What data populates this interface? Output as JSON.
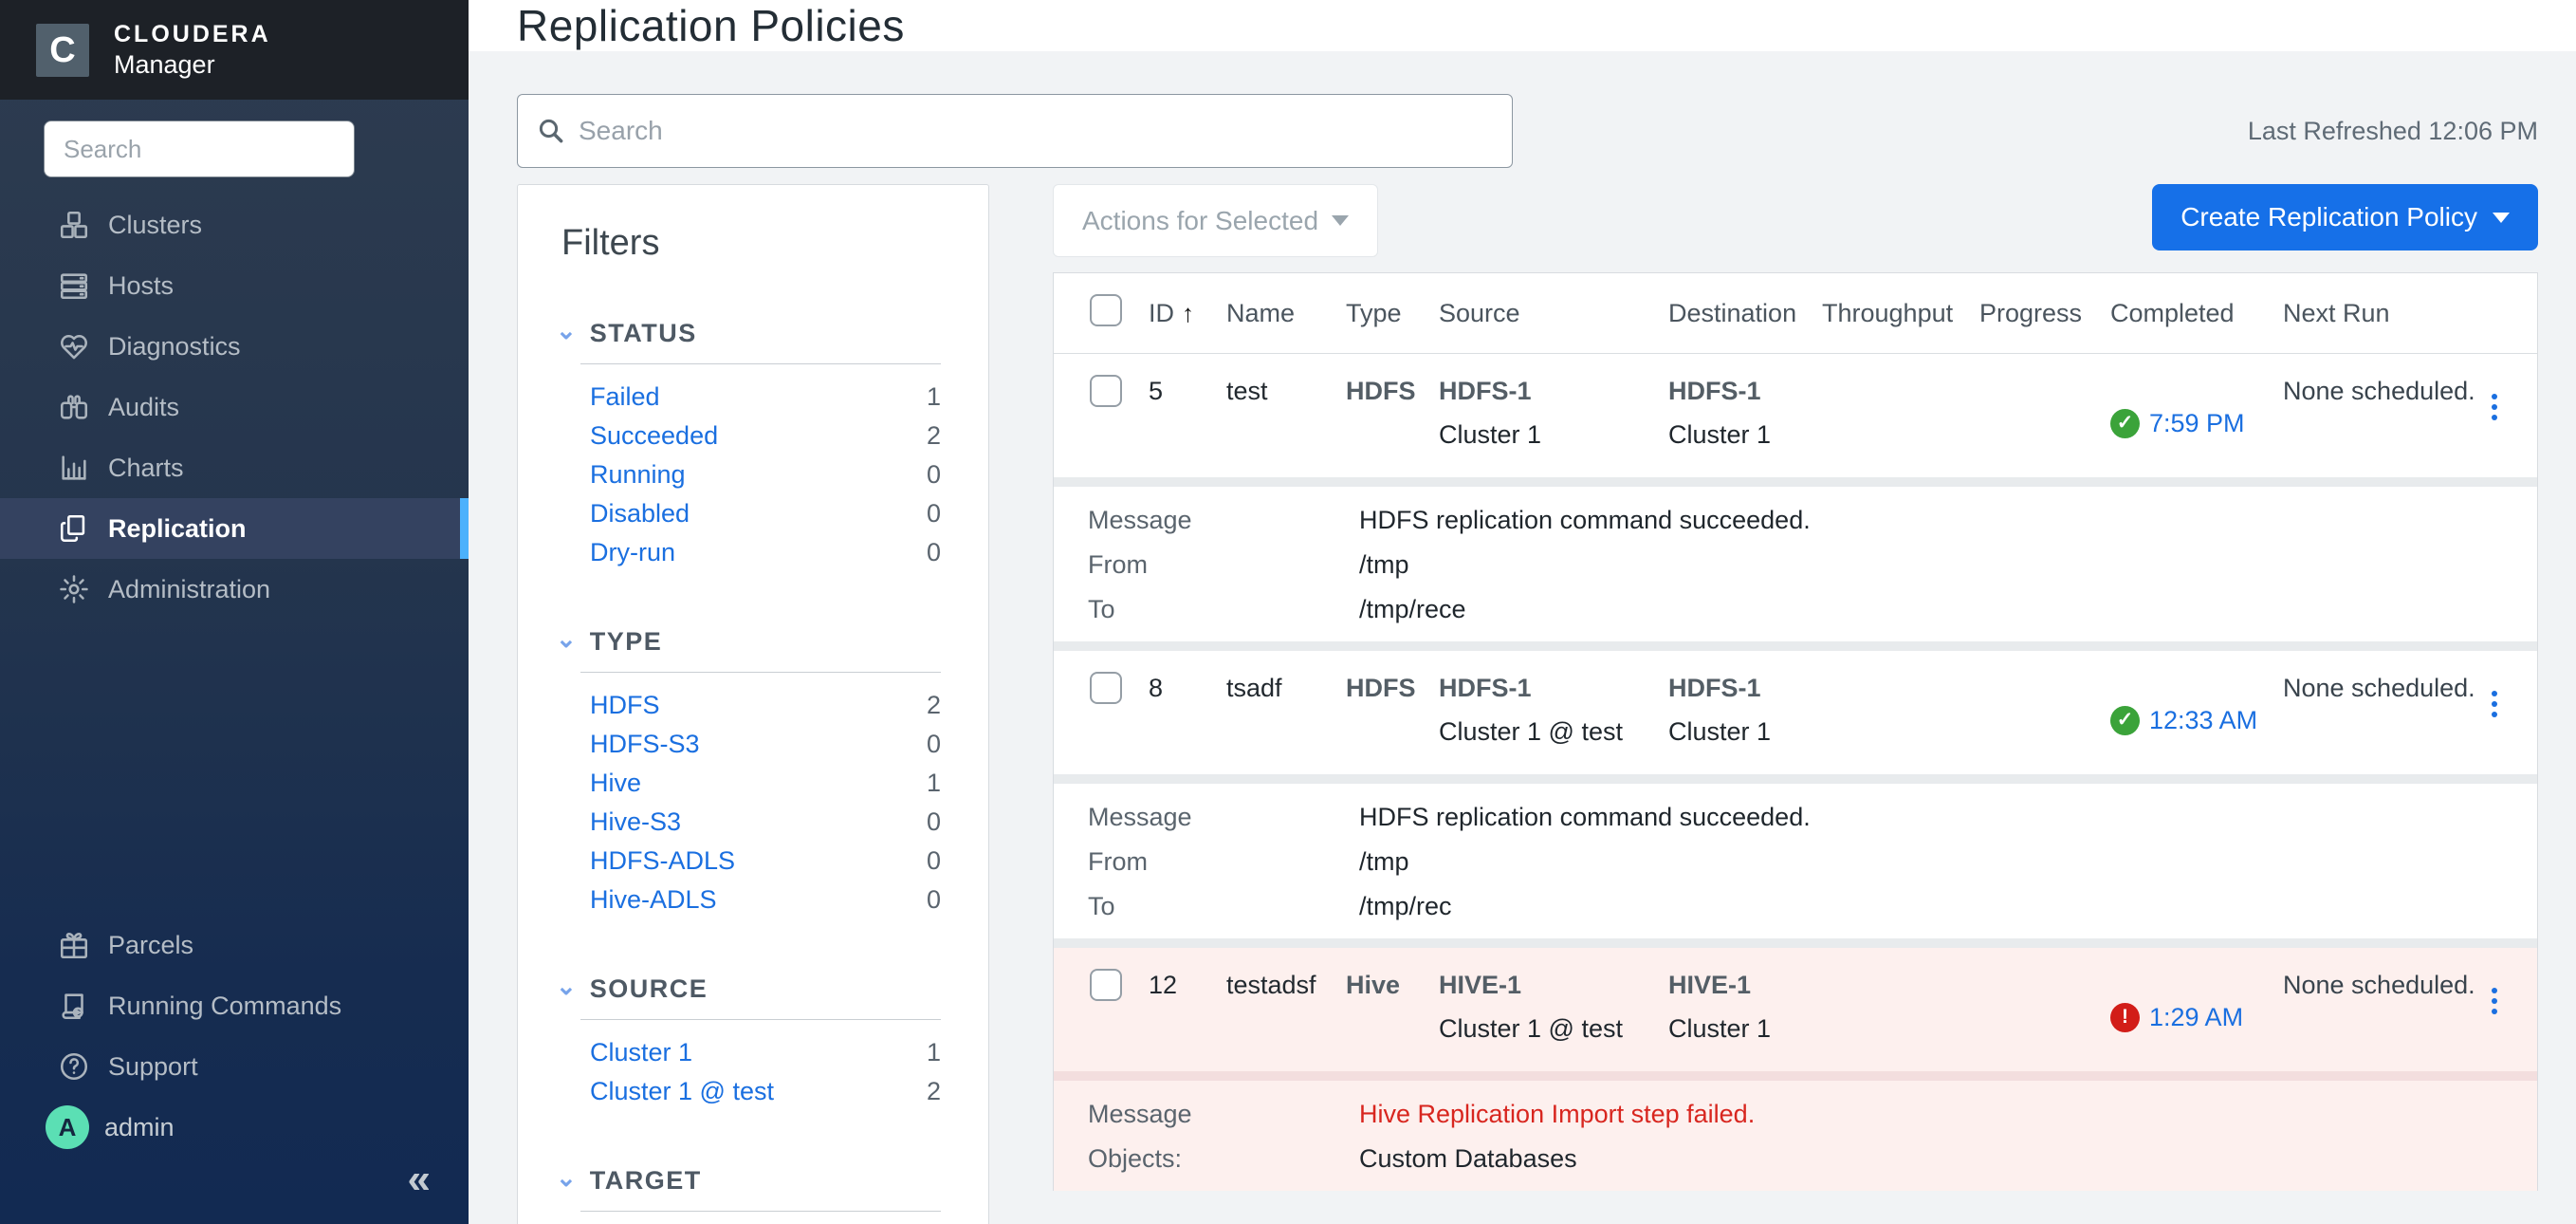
{
  "sidebar": {
    "brand": {
      "line1": "CLOUDERA",
      "line2": "Manager",
      "logo_letter": "C"
    },
    "search_placeholder": "Search",
    "items": [
      {
        "id": "clusters",
        "label": "Clusters",
        "icon": "clusters-icon",
        "active": false
      },
      {
        "id": "hosts",
        "label": "Hosts",
        "icon": "hosts-icon",
        "active": false
      },
      {
        "id": "diagnostics",
        "label": "Diagnostics",
        "icon": "diagnostics-icon",
        "active": false
      },
      {
        "id": "audits",
        "label": "Audits",
        "icon": "audits-icon",
        "active": false
      },
      {
        "id": "charts",
        "label": "Charts",
        "icon": "charts-icon",
        "active": false
      },
      {
        "id": "replication",
        "label": "Replication",
        "icon": "replication-icon",
        "active": true
      },
      {
        "id": "administration",
        "label": "Administration",
        "icon": "administration-icon",
        "active": false
      }
    ],
    "footer_items": [
      {
        "id": "parcels",
        "label": "Parcels",
        "icon": "parcels-icon"
      },
      {
        "id": "running-commands",
        "label": "Running Commands",
        "icon": "running-commands-icon"
      },
      {
        "id": "support",
        "label": "Support",
        "icon": "support-icon"
      }
    ],
    "user": {
      "name": "admin",
      "avatar_letter": "A"
    },
    "collapse_glyph": "«"
  },
  "header": {
    "title": "Replication Policies"
  },
  "toolbar": {
    "search_placeholder": "Search",
    "last_refreshed": "Last Refreshed 12:06 PM",
    "actions_button_label": "Actions for Selected",
    "create_button_label": "Create Replication Policy"
  },
  "filters": {
    "title": "Filters",
    "sections": [
      {
        "label": "STATUS",
        "items": [
          {
            "label": "Failed",
            "count": "1"
          },
          {
            "label": "Succeeded",
            "count": "2"
          },
          {
            "label": "Running",
            "count": "0"
          },
          {
            "label": "Disabled",
            "count": "0"
          },
          {
            "label": "Dry-run",
            "count": "0"
          }
        ]
      },
      {
        "label": "TYPE",
        "items": [
          {
            "label": "HDFS",
            "count": "2"
          },
          {
            "label": "HDFS-S3",
            "count": "0"
          },
          {
            "label": "Hive",
            "count": "1"
          },
          {
            "label": "Hive-S3",
            "count": "0"
          },
          {
            "label": "HDFS-ADLS",
            "count": "0"
          },
          {
            "label": "Hive-ADLS",
            "count": "0"
          }
        ]
      },
      {
        "label": "SOURCE",
        "items": [
          {
            "label": "Cluster 1",
            "count": "1"
          },
          {
            "label": "Cluster 1 @ test",
            "count": "2"
          }
        ]
      },
      {
        "label": "TARGET",
        "items": []
      }
    ]
  },
  "table": {
    "columns": [
      "ID",
      "Name",
      "Type",
      "Source",
      "Destination",
      "Throughput",
      "Progress",
      "Completed",
      "Next Run"
    ],
    "sorted_by": "ID",
    "sort_direction_glyph": "↑",
    "rows": [
      {
        "id": "5",
        "name": "test",
        "type": "HDFS",
        "source": {
          "service": "HDFS-1",
          "cluster": "Cluster 1"
        },
        "destination": {
          "service": "HDFS-1",
          "cluster": "Cluster 1"
        },
        "throughput": "",
        "progress": "",
        "completed": {
          "status": "success",
          "time": "7:59 PM"
        },
        "next_run": "None scheduled.",
        "failed": false,
        "details": [
          {
            "label": "Message",
            "value": "HDFS replication command succeeded.",
            "danger": false
          },
          {
            "label": "From",
            "value": "/tmp",
            "danger": false
          },
          {
            "label": "To",
            "value": "/tmp/rece",
            "danger": false
          }
        ]
      },
      {
        "id": "8",
        "name": "tsadf",
        "type": "HDFS",
        "source": {
          "service": "HDFS-1",
          "cluster": "Cluster 1 @ test"
        },
        "destination": {
          "service": "HDFS-1",
          "cluster": "Cluster 1"
        },
        "throughput": "",
        "progress": "",
        "completed": {
          "status": "success",
          "time": "12:33 AM"
        },
        "next_run": "None scheduled.",
        "failed": false,
        "details": [
          {
            "label": "Message",
            "value": "HDFS replication command succeeded.",
            "danger": false
          },
          {
            "label": "From",
            "value": "/tmp",
            "danger": false
          },
          {
            "label": "To",
            "value": "/tmp/rec",
            "danger": false
          }
        ]
      },
      {
        "id": "12",
        "name": "testadsf",
        "type": "Hive",
        "source": {
          "service": "HIVE-1",
          "cluster": "Cluster 1 @ test"
        },
        "destination": {
          "service": "HIVE-1",
          "cluster": "Cluster 1"
        },
        "throughput": "",
        "progress": "",
        "completed": {
          "status": "failed",
          "time": "1:29 AM"
        },
        "next_run": "None scheduled.",
        "failed": true,
        "details": [
          {
            "label": "Message",
            "value": "Hive Replication Import step failed.",
            "danger": true
          },
          {
            "label": "Objects:",
            "value": "Custom Databases",
            "danger": false
          }
        ]
      }
    ]
  },
  "colors": {
    "sidebar_active_bar": "#4cb1fc",
    "create_button": "#1670e8",
    "link_blue": "#1a6fe0",
    "success_green": "#3ba33a",
    "error_red": "#d21d18",
    "failed_row_bg": "#fdf0ee",
    "failed_text": "#d8261f"
  }
}
